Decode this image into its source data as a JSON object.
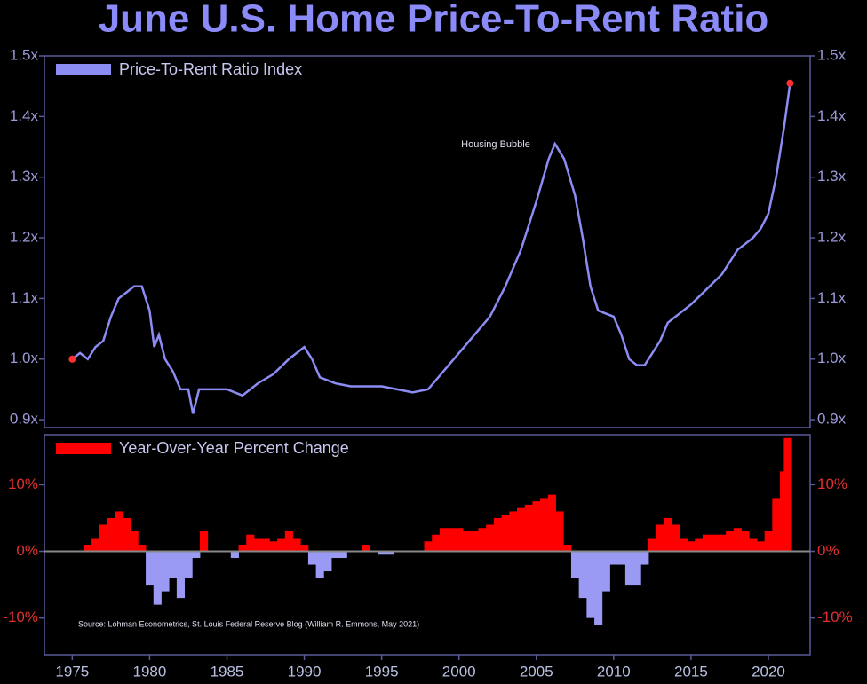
{
  "chart_data": [
    {
      "type": "line",
      "title": "June U.S. Home Price-To-Rent Ratio",
      "annotations": [
        "Housing Bubble"
      ],
      "ylim": [
        0.887,
        1.5
      ],
      "yticks": [
        {
          "value": 0.9,
          "label": "0.9x"
        },
        {
          "value": 1.0,
          "label": "1.0x"
        },
        {
          "value": 1.1,
          "label": "1.1x"
        },
        {
          "value": 1.2,
          "label": "1.2x"
        },
        {
          "value": 1.3,
          "label": "1.3x"
        },
        {
          "value": 1.4,
          "label": "1.4x"
        },
        {
          "value": 1.5,
          "label": "1.5x"
        }
      ],
      "xlim": [
        1973.2,
        2022.7
      ],
      "legend": "upper left",
      "x": [
        1975,
        1975.5,
        1976,
        1976.5,
        1977,
        1977.5,
        1978,
        1978.5,
        1979,
        1979.5,
        1980,
        1980.3,
        1980.6,
        1981,
        1981.5,
        1982,
        1982.5,
        1982.8,
        1983.2,
        1984,
        1985,
        1986,
        1987,
        1988,
        1989,
        1990,
        1990.5,
        1991,
        1992,
        1993,
        1994,
        1995,
        1996,
        1997,
        1998,
        1999,
        2000,
        2001,
        2002,
        2003,
        2004,
        2005,
        2005.8,
        2006.2,
        2006.8,
        2007.5,
        2008,
        2008.5,
        2009,
        2010,
        2010.5,
        2011,
        2011.5,
        2012,
        2012.5,
        2013,
        2013.5,
        2014,
        2015,
        2016,
        2017,
        2018,
        2019,
        2019.5,
        2020,
        2020.5,
        2021,
        2021.4
      ],
      "series": [
        {
          "name": "Price-To-Rent Ratio Index",
          "color": "#8c8cf5",
          "values": [
            1.0,
            1.01,
            1.0,
            1.02,
            1.03,
            1.07,
            1.1,
            1.11,
            1.12,
            1.12,
            1.08,
            1.02,
            1.04,
            1.0,
            0.98,
            0.95,
            0.95,
            0.91,
            0.95,
            0.95,
            0.95,
            0.94,
            0.96,
            0.975,
            1.0,
            1.02,
            1.0,
            0.97,
            0.96,
            0.955,
            0.955,
            0.955,
            0.95,
            0.945,
            0.95,
            0.98,
            1.01,
            1.04,
            1.07,
            1.12,
            1.18,
            1.26,
            1.33,
            1.355,
            1.33,
            1.27,
            1.2,
            1.12,
            1.08,
            1.07,
            1.04,
            1.0,
            0.99,
            0.99,
            1.01,
            1.03,
            1.06,
            1.07,
            1.09,
            1.115,
            1.14,
            1.18,
            1.2,
            1.215,
            1.24,
            1.3,
            1.38,
            1.455
          ]
        }
      ]
    },
    {
      "type": "bar",
      "source": "Source: Lohman Econometrics, St. Louis Federal Reserve Blog (William R. Emmons, May 2021)",
      "ylim": [
        -15.5,
        17.5
      ],
      "yticks": [
        {
          "value": -10,
          "label": "-10%"
        },
        {
          "value": 0,
          "label": "0%"
        },
        {
          "value": 10,
          "label": "10%"
        }
      ],
      "xlim": [
        1973.2,
        2022.7
      ],
      "xticks": [
        1975,
        1980,
        1985,
        1990,
        1995,
        2000,
        2005,
        2010,
        2015,
        2020
      ],
      "legend": "upper left",
      "x": [
        1975,
        1975.5,
        1976,
        1976.5,
        1977,
        1977.5,
        1978,
        1978.5,
        1979,
        1979.5,
        1980,
        1980.5,
        1981,
        1981.5,
        1982,
        1982.5,
        1983,
        1983.5,
        1984,
        1984.5,
        1985,
        1985.5,
        1986,
        1986.5,
        1987,
        1987.5,
        1988,
        1988.5,
        1989,
        1989.5,
        1990,
        1990.5,
        1991,
        1991.5,
        1992,
        1992.5,
        1993,
        1993.5,
        1994,
        1994.5,
        1995,
        1995.5,
        1996,
        1996.5,
        1997,
        1997.5,
        1998,
        1998.5,
        1999,
        1999.5,
        2000,
        2000.5,
        2001,
        2001.5,
        2002,
        2002.5,
        2003,
        2003.5,
        2004,
        2004.5,
        2005,
        2005.5,
        2006,
        2006.5,
        2007,
        2007.5,
        2008,
        2008.5,
        2009,
        2009.5,
        2010,
        2010.5,
        2011,
        2011.5,
        2012,
        2012.5,
        2013,
        2013.5,
        2014,
        2014.5,
        2015,
        2015.5,
        2016,
        2016.5,
        2017,
        2017.5,
        2018,
        2018.5,
        2019,
        2019.5,
        2020,
        2020.5,
        2021,
        2021.25
      ],
      "series": [
        {
          "name": "Year-Over-Year Percent Change",
          "color": "#ff0000",
          "negative_color": "#9a9af5",
          "values": [
            0,
            0,
            1,
            2,
            4,
            5,
            6,
            5,
            3,
            1,
            -5,
            -8,
            -6,
            -4,
            -7,
            -4,
            -1,
            3,
            0,
            0,
            0,
            -1,
            1,
            2.5,
            2,
            2,
            1.5,
            2,
            3,
            2,
            1,
            -2,
            -4,
            -3,
            -1,
            -1,
            0,
            0,
            1,
            0,
            -0.5,
            -0.5,
            0,
            0,
            0,
            0,
            1.5,
            2.5,
            3.5,
            3.5,
            3.5,
            3,
            3,
            3.5,
            4,
            5,
            5.5,
            6,
            6.5,
            7,
            7.5,
            8,
            8.5,
            6,
            1,
            -4,
            -7,
            -10,
            -11,
            -6,
            -2,
            -2,
            -5,
            -5,
            -2,
            2,
            4,
            5,
            4,
            2,
            1.5,
            2,
            2.5,
            2.5,
            2.5,
            3,
            3.5,
            3,
            2,
            1.5,
            3,
            8,
            12,
            17
          ]
        }
      ]
    }
  ]
}
